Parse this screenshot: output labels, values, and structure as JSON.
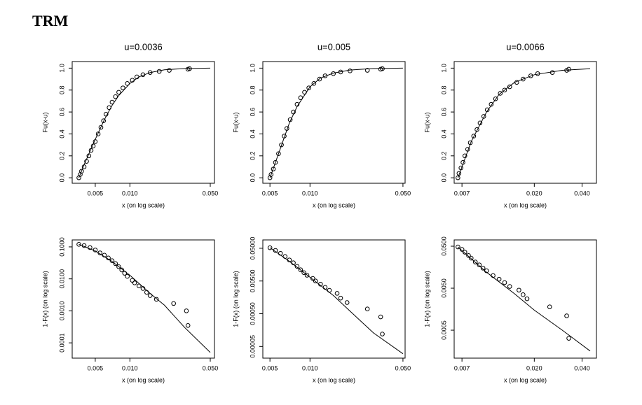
{
  "title": "TRM",
  "chart_data": [
    {
      "type": "scatter",
      "title": "u=0.0036",
      "xlabel": "x (on log scale)",
      "ylabel": "Fu(x-u)",
      "xlog": true,
      "ylog": false,
      "xlim": [
        0.00315,
        0.0544
      ],
      "ylim": [
        -0.05,
        1.06
      ],
      "xticks": [
        {
          "value": 0.005,
          "label": "0.005"
        },
        {
          "value": 0.01,
          "label": "0.010"
        },
        {
          "value": 0.05,
          "label": "0.050"
        }
      ],
      "yticks": [
        {
          "value": 0,
          "label": "0.0"
        },
        {
          "value": 0.2,
          "label": "0.2"
        },
        {
          "value": 0.4,
          "label": "0.4"
        },
        {
          "value": 0.6,
          "label": "0.6"
        },
        {
          "value": 0.8,
          "label": "0.8"
        },
        {
          "value": 1,
          "label": "1.0"
        }
      ],
      "series": [
        {
          "type": "scatter",
          "color": "#000000",
          "x": [
            0.0036,
            0.0037,
            0.0038,
            0.004,
            0.0042,
            0.0044,
            0.0046,
            0.0048,
            0.005,
            0.0053,
            0.0056,
            0.0059,
            0.0062,
            0.0066,
            0.007,
            0.0075,
            0.008,
            0.0087,
            0.0095,
            0.0105,
            0.0115,
            0.013,
            0.015,
            0.018,
            0.022,
            0.032,
            0.033
          ],
          "values": [
            0,
            0.03,
            0.06,
            0.1,
            0.15,
            0.2,
            0.25,
            0.29,
            0.33,
            0.4,
            0.46,
            0.52,
            0.58,
            0.64,
            0.69,
            0.74,
            0.78,
            0.82,
            0.86,
            0.89,
            0.92,
            0.94,
            0.96,
            0.97,
            0.98,
            0.99,
            0.995
          ]
        },
        {
          "type": "line",
          "color": "#000000",
          "x": [
            0.0036,
            0.004,
            0.005,
            0.006,
            0.007,
            0.008,
            0.01,
            0.012,
            0.015,
            0.02,
            0.03,
            0.05
          ],
          "values": [
            0,
            0.12,
            0.35,
            0.53,
            0.66,
            0.75,
            0.86,
            0.92,
            0.96,
            0.985,
            0.996,
            1
          ]
        }
      ]
    },
    {
      "type": "scatter",
      "title": "u=0.005",
      "xlabel": "x (on log scale)",
      "ylabel": "Fu(x-u)",
      "xlog": true,
      "ylog": false,
      "xlim": [
        0.00442,
        0.0519
      ],
      "ylim": [
        -0.05,
        1.06
      ],
      "xticks": [
        {
          "value": 0.005,
          "label": "0.005"
        },
        {
          "value": 0.01,
          "label": "0.010"
        },
        {
          "value": 0.05,
          "label": "0.050"
        }
      ],
      "yticks": [
        {
          "value": 0,
          "label": "0.0"
        },
        {
          "value": 0.2,
          "label": "0.2"
        },
        {
          "value": 0.4,
          "label": "0.4"
        },
        {
          "value": 0.6,
          "label": "0.6"
        },
        {
          "value": 0.8,
          "label": "0.8"
        },
        {
          "value": 1,
          "label": "1.0"
        }
      ],
      "series": [
        {
          "type": "scatter",
          "color": "#000000",
          "x": [
            0.005,
            0.0051,
            0.0053,
            0.0055,
            0.0058,
            0.0061,
            0.0064,
            0.0067,
            0.0071,
            0.0075,
            0.008,
            0.0085,
            0.0091,
            0.0098,
            0.0107,
            0.0118,
            0.013,
            0.015,
            0.017,
            0.02,
            0.027,
            0.034,
            0.035
          ],
          "values": [
            0,
            0.03,
            0.08,
            0.14,
            0.22,
            0.3,
            0.38,
            0.45,
            0.53,
            0.6,
            0.67,
            0.73,
            0.78,
            0.82,
            0.86,
            0.9,
            0.93,
            0.95,
            0.965,
            0.975,
            0.98,
            0.99,
            0.995
          ]
        },
        {
          "type": "line",
          "color": "#000000",
          "x": [
            0.005,
            0.006,
            0.007,
            0.008,
            0.01,
            0.012,
            0.015,
            0.02,
            0.03,
            0.05
          ],
          "values": [
            0,
            0.27,
            0.5,
            0.65,
            0.83,
            0.91,
            0.955,
            0.983,
            0.996,
            1
          ]
        }
      ]
    },
    {
      "type": "scatter",
      "title": "u=0.0066",
      "xlabel": "x (on log scale)",
      "ylabel": "Fu(x-u)",
      "xlog": true,
      "ylog": false,
      "xlim": [
        0.00625,
        0.0493
      ],
      "ylim": [
        -0.05,
        1.06
      ],
      "xticks": [
        {
          "value": 0.007,
          "label": "0.007"
        },
        {
          "value": 0.02,
          "label": "0.020"
        },
        {
          "value": 0.04,
          "label": "0.040"
        }
      ],
      "yticks": [
        {
          "value": 0,
          "label": "0.0"
        },
        {
          "value": 0.2,
          "label": "0.2"
        },
        {
          "value": 0.4,
          "label": "0.4"
        },
        {
          "value": 0.6,
          "label": "0.6"
        },
        {
          "value": 0.8,
          "label": "0.8"
        },
        {
          "value": 1,
          "label": "1.0"
        }
      ],
      "series": [
        {
          "type": "scatter",
          "color": "#000000",
          "x": [
            0.0066,
            0.0067,
            0.0069,
            0.0071,
            0.0073,
            0.0076,
            0.0079,
            0.0083,
            0.0087,
            0.0091,
            0.0096,
            0.0101,
            0.0107,
            0.0114,
            0.0122,
            0.013,
            0.014,
            0.0155,
            0.017,
            0.019,
            0.021,
            0.026,
            0.032,
            0.033
          ],
          "values": [
            0,
            0.04,
            0.09,
            0.14,
            0.2,
            0.26,
            0.32,
            0.38,
            0.44,
            0.5,
            0.56,
            0.62,
            0.67,
            0.72,
            0.77,
            0.8,
            0.83,
            0.87,
            0.9,
            0.93,
            0.95,
            0.96,
            0.98,
            0.99
          ]
        },
        {
          "type": "line",
          "color": "#000000",
          "x": [
            0.0066,
            0.008,
            0.01,
            0.012,
            0.015,
            0.02,
            0.03,
            0.045
          ],
          "values": [
            0,
            0.33,
            0.6,
            0.76,
            0.87,
            0.94,
            0.98,
            0.995
          ]
        }
      ]
    },
    {
      "type": "scatter",
      "xlabel": "x (on log scale)",
      "ylabel": "1-F(x) (on log scale)",
      "xlog": true,
      "ylog": true,
      "xlim": [
        0.00315,
        0.0544
      ],
      "ylim": [
        3.33e-05,
        0.165
      ],
      "xticks": [
        {
          "value": 0.005,
          "label": "0.005"
        },
        {
          "value": 0.01,
          "label": "0.010"
        },
        {
          "value": 0.05,
          "label": "0.050"
        }
      ],
      "yticks": [
        {
          "value": 0.0001,
          "label": "0.0001"
        },
        {
          "value": 0.001,
          "label": "0.0010"
        },
        {
          "value": 0.01,
          "label": "0.0100"
        },
        {
          "value": 0.1,
          "label": "0.1000"
        }
      ],
      "series": [
        {
          "type": "scatter",
          "color": "#000000",
          "x": [
            0.0036,
            0.004,
            0.0045,
            0.005,
            0.0055,
            0.006,
            0.0065,
            0.007,
            0.0075,
            0.008,
            0.0085,
            0.009,
            0.0095,
            0.0105,
            0.011,
            0.012,
            0.013,
            0.014,
            0.015,
            0.017,
            0.024,
            0.031,
            0.032
          ],
          "values": [
            0.12,
            0.11,
            0.095,
            0.08,
            0.065,
            0.055,
            0.045,
            0.037,
            0.03,
            0.024,
            0.019,
            0.015,
            0.012,
            0.009,
            0.0075,
            0.006,
            0.005,
            0.0038,
            0.003,
            0.0023,
            0.0017,
            0.001,
            0.00035
          ]
        },
        {
          "type": "line",
          "color": "#000000",
          "x": [
            0.0036,
            0.005,
            0.007,
            0.01,
            0.015,
            0.02,
            0.03,
            0.05
          ],
          "values": [
            0.12,
            0.075,
            0.035,
            0.013,
            0.0035,
            0.0015,
            0.0003,
            5e-05
          ]
        }
      ]
    },
    {
      "type": "scatter",
      "xlabel": "x (on log scale)",
      "ylabel": "1-F(x) (on log scale)",
      "xlog": true,
      "ylog": true,
      "xlim": [
        0.00442,
        0.0519
      ],
      "ylim": [
        2.2e-05,
        0.09
      ],
      "xticks": [
        {
          "value": 0.005,
          "label": "0.005"
        },
        {
          "value": 0.01,
          "label": "0.010"
        },
        {
          "value": 0.05,
          "label": "0.050"
        }
      ],
      "yticks": [
        {
          "value": 5e-05,
          "label": "0.00005"
        },
        {
          "value": 0.0005,
          "label": "0.00050"
        },
        {
          "value": 0.005,
          "label": "0.00500"
        },
        {
          "value": 0.05,
          "label": "0.05000"
        }
      ],
      "series": [
        {
          "type": "scatter",
          "color": "#000000",
          "x": [
            0.005,
            0.0055,
            0.006,
            0.0065,
            0.007,
            0.0075,
            0.008,
            0.0085,
            0.009,
            0.0095,
            0.0105,
            0.011,
            0.012,
            0.013,
            0.014,
            0.016,
            0.017,
            0.019,
            0.027,
            0.034,
            0.035
          ],
          "values": [
            0.052,
            0.043,
            0.035,
            0.028,
            0.022,
            0.018,
            0.014,
            0.011,
            0.009,
            0.0075,
            0.006,
            0.005,
            0.004,
            0.0032,
            0.0026,
            0.0021,
            0.0015,
            0.0011,
            0.0007,
            0.0004,
            0.00012
          ]
        },
        {
          "type": "line",
          "color": "#000000",
          "x": [
            0.005,
            0.007,
            0.01,
            0.015,
            0.02,
            0.03,
            0.05
          ],
          "values": [
            0.052,
            0.02,
            0.0065,
            0.0018,
            0.0006,
            0.00013,
            3e-05
          ]
        }
      ]
    },
    {
      "type": "scatter",
      "xlabel": "x (on log scale)",
      "ylabel": "1-F(x) (on log scale)",
      "xlog": true,
      "ylog": true,
      "xlim": [
        0.00625,
        0.0493
      ],
      "ylim": [
        0.000108,
        0.0706
      ],
      "xticks": [
        {
          "value": 0.007,
          "label": "0.007"
        },
        {
          "value": 0.02,
          "label": "0.020"
        },
        {
          "value": 0.04,
          "label": "0.040"
        }
      ],
      "yticks": [
        {
          "value": 0.0005,
          "label": "0.0005"
        },
        {
          "value": 0.005,
          "label": "0.0050"
        },
        {
          "value": 0.05,
          "label": "0.0500"
        }
      ],
      "series": [
        {
          "type": "scatter",
          "color": "#000000",
          "x": [
            0.0066,
            0.007,
            0.0073,
            0.0077,
            0.008,
            0.0085,
            0.009,
            0.0095,
            0.01,
            0.011,
            0.012,
            0.013,
            0.014,
            0.016,
            0.017,
            0.018,
            0.025,
            0.032,
            0.033
          ],
          "values": [
            0.048,
            0.042,
            0.036,
            0.03,
            0.026,
            0.021,
            0.018,
            0.015,
            0.013,
            0.01,
            0.0082,
            0.0068,
            0.0055,
            0.0045,
            0.0035,
            0.0028,
            0.0018,
            0.0011,
            0.00032
          ]
        },
        {
          "type": "line",
          "color": "#000000",
          "x": [
            0.0066,
            0.01,
            0.015,
            0.02,
            0.03,
            0.045
          ],
          "values": [
            0.048,
            0.012,
            0.0037,
            0.0015,
            0.0005,
            0.00016
          ]
        }
      ]
    }
  ]
}
